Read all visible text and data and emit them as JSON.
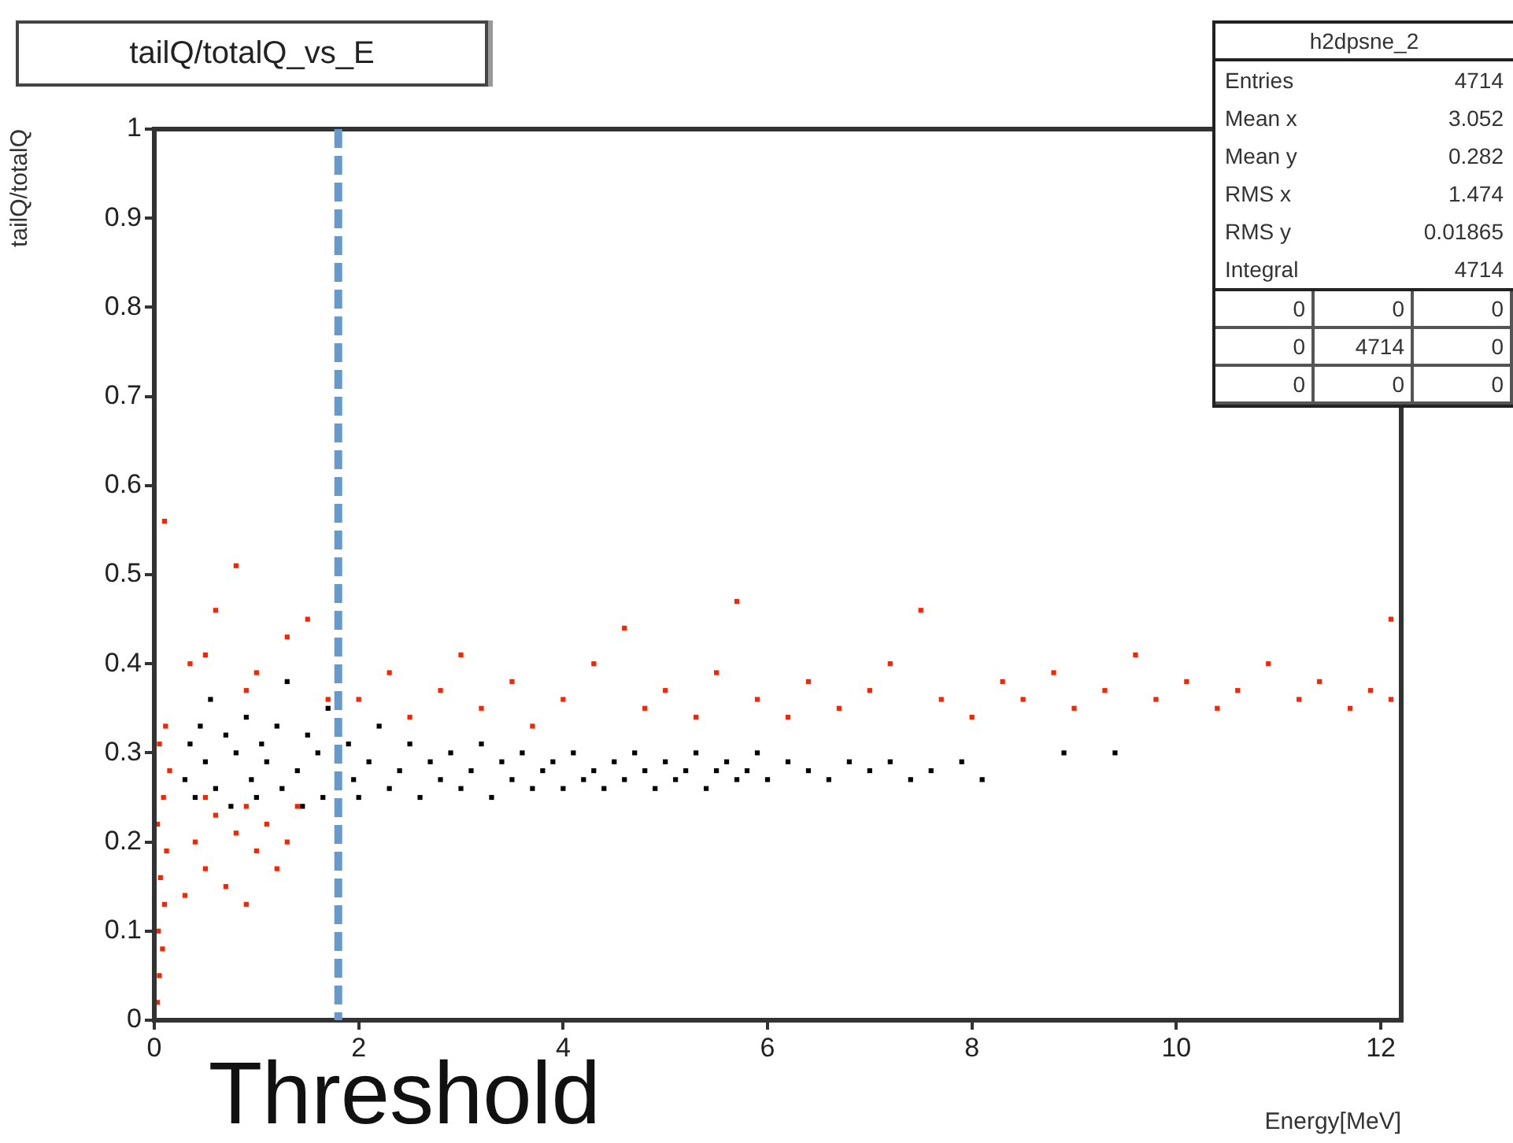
{
  "chart_data": {
    "type": "scatter",
    "title": "tailQ/totalQ_vs_E",
    "xlabel": "Energy[MeV]",
    "ylabel": "tailQ/totalQ",
    "xlim": [
      0,
      12.2
    ],
    "xticks": [
      0,
      2,
      4,
      6,
      8,
      10,
      12
    ],
    "ylim": [
      0,
      1
    ],
    "yticks": [
      0,
      0.1,
      0.2,
      0.3,
      0.4,
      0.5,
      0.6,
      0.7,
      0.8,
      0.9,
      1
    ],
    "grid": false,
    "legend": false,
    "marker": "square",
    "ref_lines": [
      {
        "axis": "x",
        "value": 1.8,
        "label": "Threshold",
        "color": "#6699cc",
        "line_style": "dashed"
      }
    ],
    "annotations": [
      "h2dpsne_2",
      "Entries 4714",
      "Mean x 3.052",
      "Mean y 0.282",
      "RMS x 1.474",
      "RMS y 0.01865",
      "Integral 4714",
      "0",
      "0",
      "0",
      "0",
      "4714",
      "0",
      "0",
      "0",
      "0"
    ],
    "series": [
      {
        "color": "#000000",
        "x": [
          0.3,
          0.35,
          0.4,
          0.45,
          0.5,
          0.55,
          0.6,
          0.7,
          0.75,
          0.8,
          0.9,
          0.95,
          1.0,
          1.05,
          1.1,
          1.2,
          1.25,
          1.3,
          1.4,
          1.45,
          1.5,
          1.6,
          1.65,
          1.7,
          1.95,
          1.9,
          2.0,
          2.1,
          2.2,
          2.3,
          2.4,
          2.5,
          2.6,
          2.7,
          2.8,
          2.9,
          3.0,
          3.1,
          3.2,
          3.3,
          3.4,
          3.5,
          3.6,
          3.7,
          3.8,
          3.9,
          4.0,
          4.1,
          4.2,
          4.3,
          4.4,
          4.5,
          4.6,
          4.7,
          4.8,
          4.9,
          5.0,
          5.1,
          5.2,
          5.3,
          5.4,
          5.5,
          5.6,
          5.7,
          5.8,
          5.9,
          6.0,
          6.2,
          6.4,
          6.6,
          6.8,
          7.0,
          7.2,
          7.4,
          7.6,
          7.9,
          8.1,
          8.9,
          9.4
        ],
        "values": [
          0.27,
          0.31,
          0.25,
          0.33,
          0.29,
          0.36,
          0.26,
          0.32,
          0.24,
          0.3,
          0.34,
          0.27,
          0.25,
          0.31,
          0.29,
          0.33,
          0.26,
          0.38,
          0.28,
          0.24,
          0.32,
          0.3,
          0.25,
          0.35,
          0.27,
          0.31,
          0.25,
          0.29,
          0.33,
          0.26,
          0.28,
          0.31,
          0.25,
          0.29,
          0.27,
          0.3,
          0.26,
          0.28,
          0.31,
          0.25,
          0.29,
          0.27,
          0.3,
          0.26,
          0.28,
          0.29,
          0.26,
          0.3,
          0.27,
          0.28,
          0.26,
          0.29,
          0.27,
          0.3,
          0.28,
          0.26,
          0.29,
          0.27,
          0.28,
          0.3,
          0.26,
          0.28,
          0.29,
          0.27,
          0.28,
          0.3,
          0.27,
          0.29,
          0.28,
          0.27,
          0.29,
          0.28,
          0.29,
          0.27,
          0.28,
          0.29,
          0.27,
          0.3,
          0.3
        ]
      },
      {
        "color": "#ff2200",
        "x": [
          0.03,
          0.05,
          0.08,
          0.04,
          0.1,
          0.06,
          0.12,
          0.03,
          0.09,
          0.15,
          0.05,
          0.11,
          0.3,
          0.4,
          0.5,
          0.6,
          0.7,
          0.8,
          0.9,
          1.0,
          1.1,
          1.2,
          1.3,
          1.4,
          0.5,
          0.9,
          0.1,
          0.8,
          0.6,
          1.3,
          0.5,
          1.0,
          0.35,
          1.5,
          0.9,
          1.7,
          2.0,
          2.3,
          2.5,
          2.8,
          3.0,
          3.2,
          3.5,
          3.7,
          4.0,
          4.3,
          4.6,
          4.8,
          5.0,
          5.3,
          5.5,
          5.7,
          5.9,
          6.2,
          6.4,
          6.7,
          7.0,
          7.2,
          7.5,
          7.7,
          8.0,
          8.3,
          8.5,
          8.8,
          9.0,
          9.3,
          9.6,
          9.8,
          10.1,
          10.4,
          10.6,
          10.9,
          11.2,
          11.4,
          11.7,
          11.9,
          12.1,
          12.1
        ],
        "values": [
          0.02,
          0.05,
          0.08,
          0.1,
          0.13,
          0.16,
          0.19,
          0.22,
          0.25,
          0.28,
          0.31,
          0.33,
          0.14,
          0.2,
          0.17,
          0.23,
          0.15,
          0.21,
          0.13,
          0.19,
          0.22,
          0.17,
          0.2,
          0.24,
          0.25,
          0.24,
          0.56,
          0.51,
          0.46,
          0.43,
          0.41,
          0.39,
          0.4,
          0.45,
          0.37,
          0.36,
          0.36,
          0.39,
          0.34,
          0.37,
          0.41,
          0.35,
          0.38,
          0.33,
          0.36,
          0.4,
          0.44,
          0.35,
          0.37,
          0.34,
          0.39,
          0.47,
          0.36,
          0.34,
          0.38,
          0.35,
          0.37,
          0.4,
          0.46,
          0.36,
          0.34,
          0.38,
          0.36,
          0.39,
          0.35,
          0.37,
          0.41,
          0.36,
          0.38,
          0.35,
          0.37,
          0.4,
          0.36,
          0.38,
          0.35,
          0.37,
          0.45,
          0.36
        ]
      }
    ]
  }
}
